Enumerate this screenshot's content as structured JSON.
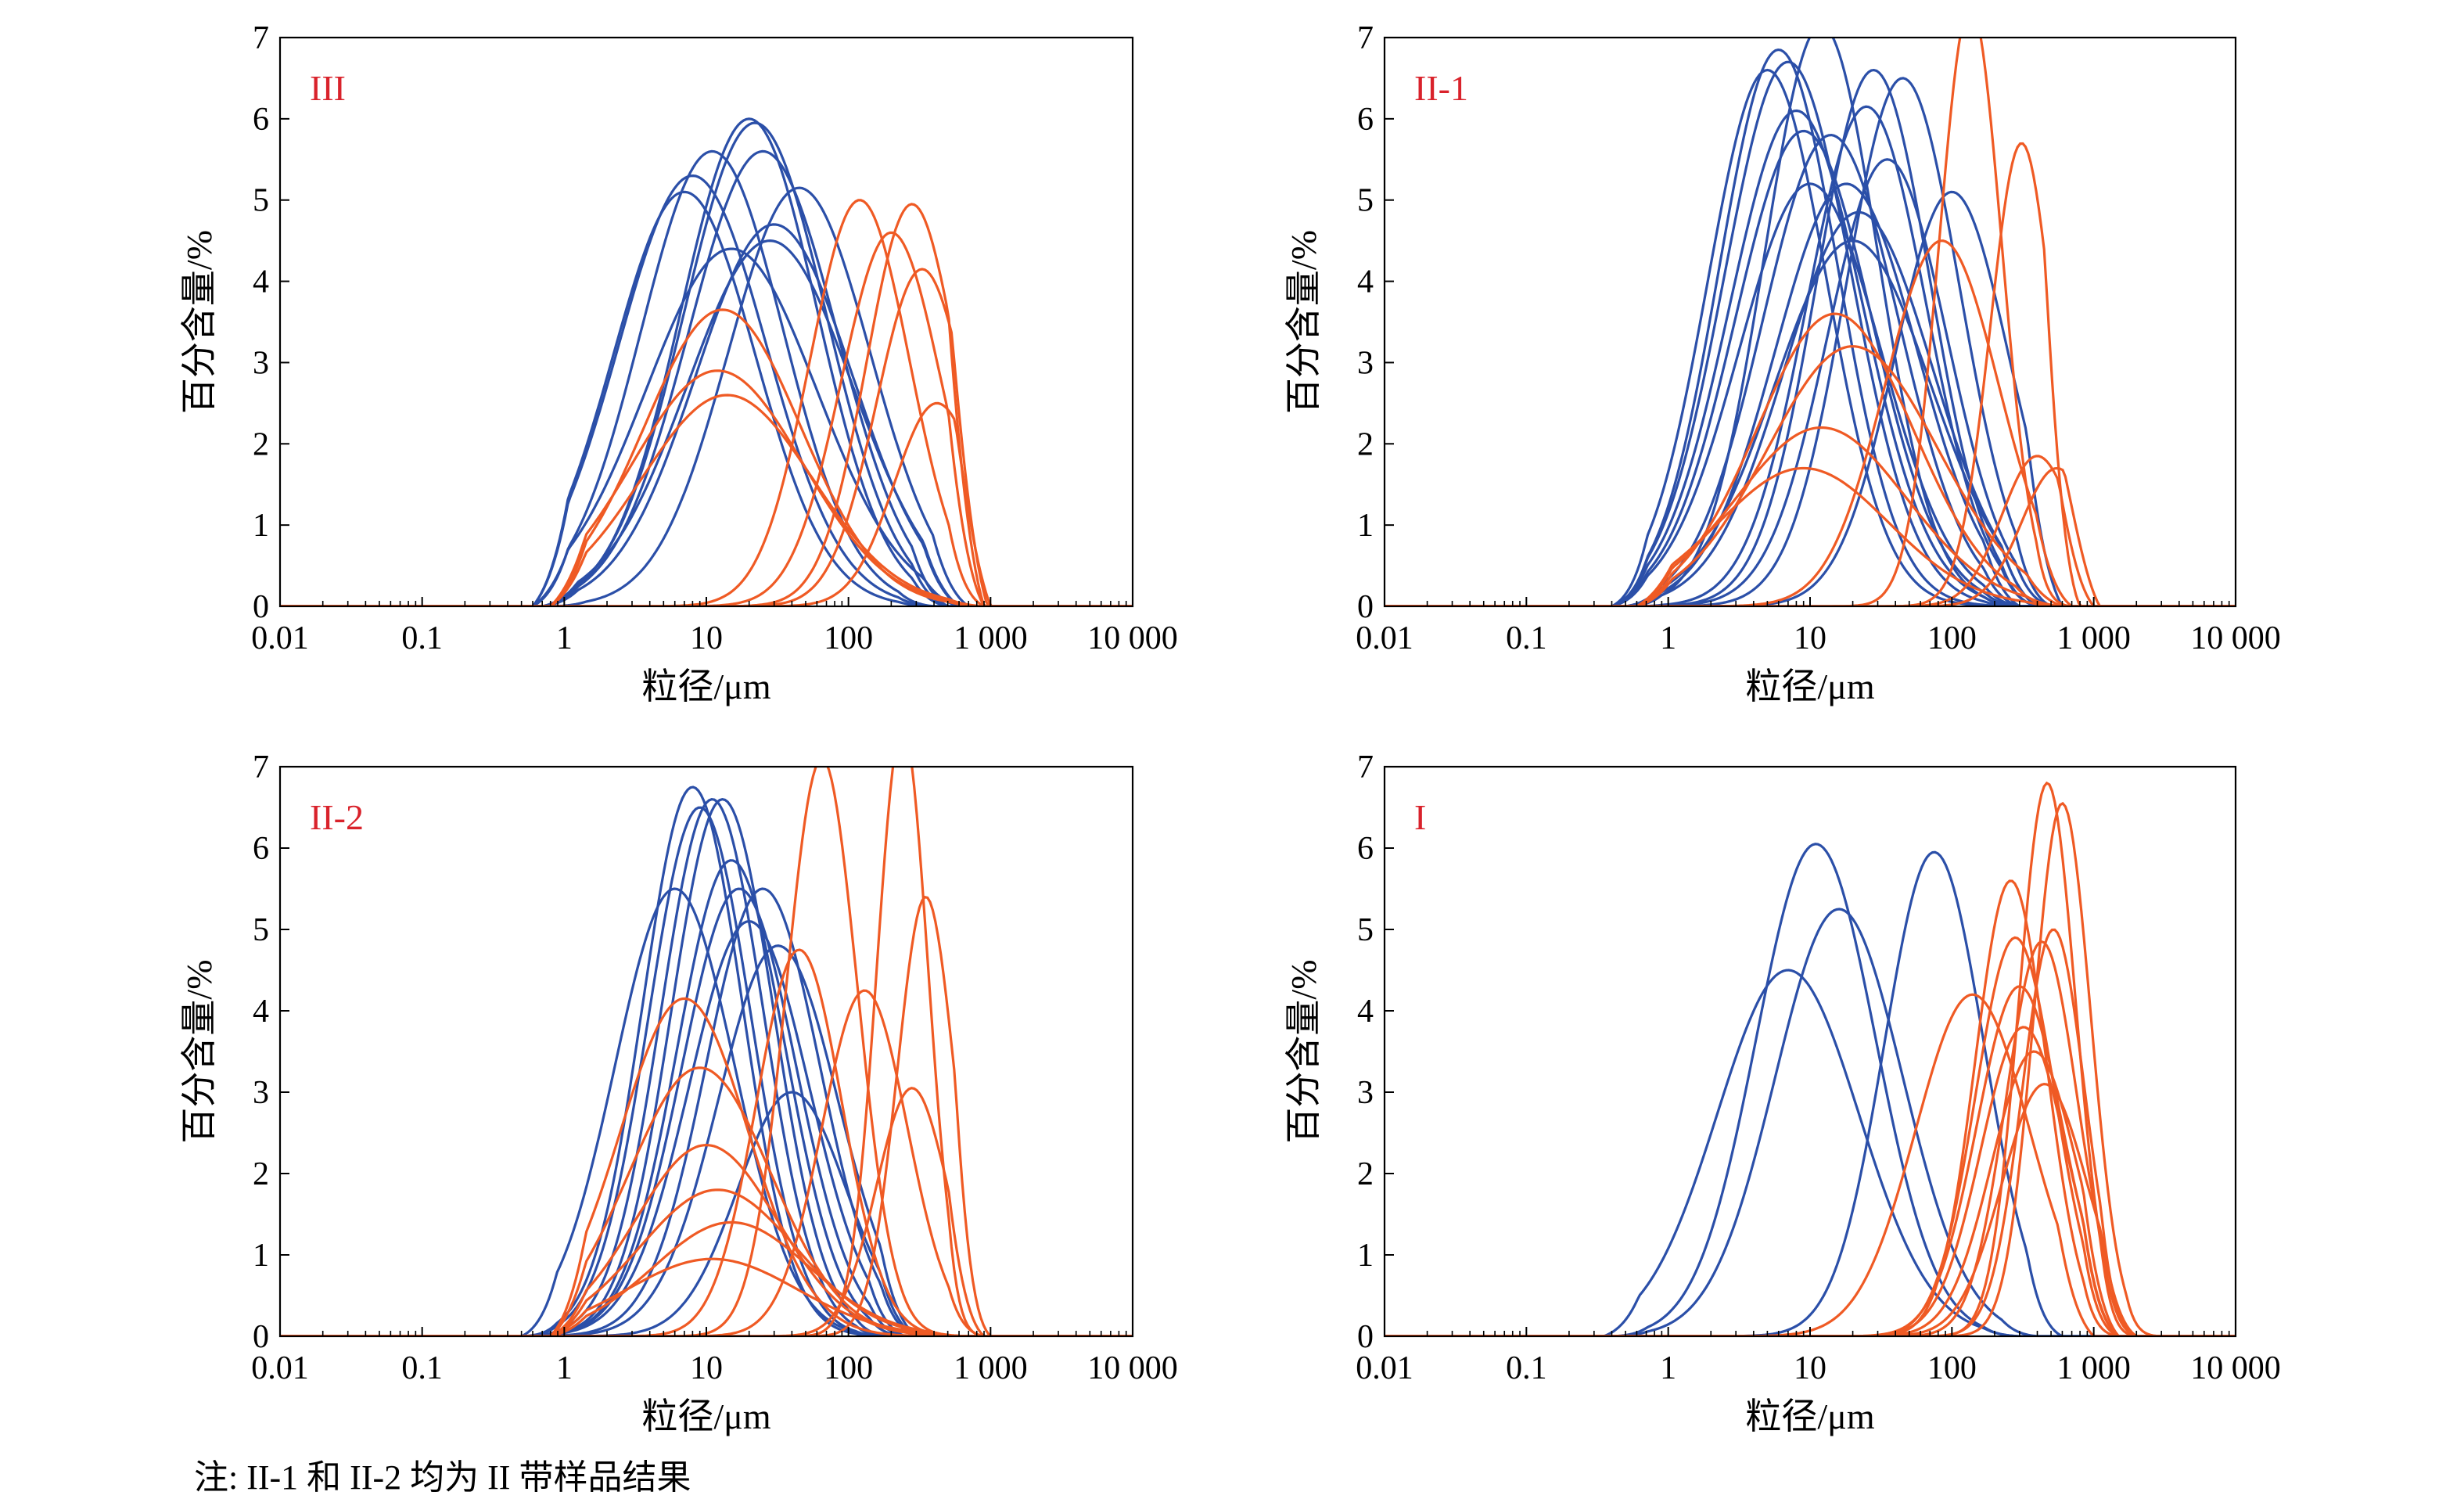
{
  "note": "注: II-1 和 II-2 均为 II 带样品结果",
  "colors": {
    "blue": "#2b4fa8",
    "orange": "#ef5a24",
    "panel_label": "#d9222b"
  },
  "chart_data": [
    {
      "type": "line",
      "panel_label": "III",
      "xlabel": "粒径/μm",
      "ylabel": "百分含量/%",
      "xscale": "log",
      "xlim": [
        0.01,
        10000
      ],
      "ylim": [
        0,
        7
      ],
      "x_ticks": [
        "0.01",
        "0.1",
        "1",
        "10",
        "100",
        "1 000",
        "10 000"
      ],
      "y_ticks": [
        "0",
        "1",
        "2",
        "3",
        "4",
        "5",
        "6",
        "7"
      ],
      "series": [
        {
          "color": "blue",
          "peak_x": 7,
          "peak_y": 5.1,
          "width": 0.5,
          "lo": 0.6,
          "hi": 400
        },
        {
          "color": "blue",
          "peak_x": 8,
          "peak_y": 5.3,
          "width": 0.52,
          "lo": 0.6,
          "hi": 400
        },
        {
          "color": "blue",
          "peak_x": 11,
          "peak_y": 5.6,
          "width": 0.5,
          "lo": 0.6,
          "hi": 400
        },
        {
          "color": "blue",
          "peak_x": 20,
          "peak_y": 6.0,
          "width": 0.48,
          "lo": 0.7,
          "hi": 500
        },
        {
          "color": "blue",
          "peak_x": 22,
          "peak_y": 5.95,
          "width": 0.5,
          "lo": 0.7,
          "hi": 500
        },
        {
          "color": "blue",
          "peak_x": 25,
          "peak_y": 5.6,
          "width": 0.52,
          "lo": 0.7,
          "hi": 500
        },
        {
          "color": "blue",
          "peak_x": 30,
          "peak_y": 4.7,
          "width": 0.55,
          "lo": 0.7,
          "hi": 600
        },
        {
          "color": "blue",
          "peak_x": 28,
          "peak_y": 4.5,
          "width": 0.58,
          "lo": 0.7,
          "hi": 600
        },
        {
          "color": "blue",
          "peak_x": 45,
          "peak_y": 5.15,
          "width": 0.5,
          "lo": 0.8,
          "hi": 700
        },
        {
          "color": "blue",
          "peak_x": 15,
          "peak_y": 4.4,
          "width": 0.6,
          "lo": 0.6,
          "hi": 600
        },
        {
          "color": "orange",
          "peak_x": 13,
          "peak_y": 3.65,
          "width": 0.55,
          "lo": 0.8,
          "hi": 900
        },
        {
          "color": "orange",
          "peak_x": 12,
          "peak_y": 2.9,
          "width": 0.6,
          "lo": 0.8,
          "hi": 900
        },
        {
          "color": "orange",
          "peak_x": 14,
          "peak_y": 2.6,
          "width": 0.6,
          "lo": 0.8,
          "hi": 900
        },
        {
          "color": "orange",
          "peak_x": 120,
          "peak_y": 5.0,
          "width": 0.35,
          "lo": 1,
          "hi": 900
        },
        {
          "color": "orange",
          "peak_x": 200,
          "peak_y": 4.6,
          "width": 0.35,
          "lo": 1,
          "hi": 900
        },
        {
          "color": "orange",
          "peak_x": 280,
          "peak_y": 4.95,
          "width": 0.32,
          "lo": 1,
          "hi": 900
        },
        {
          "color": "orange",
          "peak_x": 330,
          "peak_y": 4.15,
          "width": 0.32,
          "lo": 1,
          "hi": 950
        },
        {
          "color": "orange",
          "peak_x": 420,
          "peak_y": 2.5,
          "width": 0.3,
          "lo": 1,
          "hi": 1000
        }
      ]
    },
    {
      "type": "line",
      "panel_label": "II-1",
      "xlabel": "粒径/μm",
      "ylabel": "百分含量/%",
      "xscale": "log",
      "xlim": [
        0.01,
        10000
      ],
      "ylim": [
        0,
        7
      ],
      "x_ticks": [
        "0.01",
        "0.1",
        "1",
        "10",
        "100",
        "1 000",
        "10 000"
      ],
      "y_ticks": [
        "0",
        "1",
        "2",
        "3",
        "4",
        "5",
        "6",
        "7"
      ],
      "series": [
        {
          "color": "blue",
          "peak_x": 5,
          "peak_y": 6.6,
          "width": 0.42,
          "lo": 0.4,
          "hi": 300
        },
        {
          "color": "blue",
          "peak_x": 6,
          "peak_y": 6.85,
          "width": 0.42,
          "lo": 0.4,
          "hi": 300
        },
        {
          "color": "blue",
          "peak_x": 7,
          "peak_y": 6.7,
          "width": 0.45,
          "lo": 0.4,
          "hi": 300
        },
        {
          "color": "blue",
          "peak_x": 8,
          "peak_y": 6.1,
          "width": 0.47,
          "lo": 0.4,
          "hi": 300
        },
        {
          "color": "blue",
          "peak_x": 9,
          "peak_y": 5.85,
          "width": 0.48,
          "lo": 0.4,
          "hi": 300
        },
        {
          "color": "blue",
          "peak_x": 12,
          "peak_y": 7.15,
          "width": 0.4,
          "lo": 0.5,
          "hi": 300
        },
        {
          "color": "blue",
          "peak_x": 14,
          "peak_y": 5.8,
          "width": 0.48,
          "lo": 0.5,
          "hi": 300
        },
        {
          "color": "blue",
          "peak_x": 18,
          "peak_y": 5.2,
          "width": 0.5,
          "lo": 0.5,
          "hi": 300
        },
        {
          "color": "blue",
          "peak_x": 22,
          "peak_y": 4.85,
          "width": 0.52,
          "lo": 0.5,
          "hi": 400
        },
        {
          "color": "blue",
          "peak_x": 25,
          "peak_y": 6.15,
          "width": 0.42,
          "lo": 0.5,
          "hi": 400
        },
        {
          "color": "blue",
          "peak_x": 28,
          "peak_y": 6.6,
          "width": 0.4,
          "lo": 0.5,
          "hi": 400
        },
        {
          "color": "blue",
          "peak_x": 35,
          "peak_y": 5.5,
          "width": 0.42,
          "lo": 0.6,
          "hi": 500
        },
        {
          "color": "blue",
          "peak_x": 45,
          "peak_y": 6.5,
          "width": 0.4,
          "lo": 0.6,
          "hi": 500
        },
        {
          "color": "blue",
          "peak_x": 100,
          "peak_y": 5.1,
          "width": 0.4,
          "lo": 0.8,
          "hi": 600
        },
        {
          "color": "blue",
          "peak_x": 20,
          "peak_y": 4.5,
          "width": 0.55,
          "lo": 0.5,
          "hi": 400
        },
        {
          "color": "blue",
          "peak_x": 10,
          "peak_y": 5.2,
          "width": 0.5,
          "lo": 0.4,
          "hi": 300
        },
        {
          "color": "orange",
          "peak_x": 15,
          "peak_y": 3.6,
          "width": 0.55,
          "lo": 0.6,
          "hi": 500
        },
        {
          "color": "orange",
          "peak_x": 20,
          "peak_y": 3.2,
          "width": 0.6,
          "lo": 0.6,
          "hi": 600
        },
        {
          "color": "orange",
          "peak_x": 12,
          "peak_y": 2.2,
          "width": 0.6,
          "lo": 0.6,
          "hi": 600
        },
        {
          "color": "orange",
          "peak_x": 9,
          "peak_y": 1.7,
          "width": 0.6,
          "lo": 0.6,
          "hi": 600
        },
        {
          "color": "orange",
          "peak_x": 85,
          "peak_y": 4.5,
          "width": 0.4,
          "lo": 1,
          "hi": 700
        },
        {
          "color": "orange",
          "peak_x": 135,
          "peak_y": 7.4,
          "width": 0.22,
          "lo": 1,
          "hi": 700
        },
        {
          "color": "orange",
          "peak_x": 310,
          "peak_y": 5.7,
          "width": 0.22,
          "lo": 1,
          "hi": 800
        },
        {
          "color": "orange",
          "peak_x": 400,
          "peak_y": 1.85,
          "width": 0.25,
          "lo": 1,
          "hi": 1000
        },
        {
          "color": "orange",
          "peak_x": 550,
          "peak_y": 1.7,
          "width": 0.25,
          "lo": 1,
          "hi": 1100
        }
      ]
    },
    {
      "type": "line",
      "panel_label": "II-2",
      "xlabel": "粒径/μm",
      "ylabel": "百分含量/%",
      "xscale": "log",
      "xlim": [
        0.01,
        10000
      ],
      "ylim": [
        0,
        7
      ],
      "x_ticks": [
        "0.01",
        "0.1",
        "1",
        "10",
        "100",
        "1 000",
        "10 000"
      ],
      "y_ticks": [
        "0",
        "1",
        "2",
        "3",
        "4",
        "5",
        "6",
        "7"
      ],
      "series": [
        {
          "color": "blue",
          "peak_x": 6,
          "peak_y": 5.5,
          "width": 0.42,
          "lo": 0.5,
          "hi": 200
        },
        {
          "color": "blue",
          "peak_x": 8,
          "peak_y": 6.75,
          "width": 0.35,
          "lo": 0.5,
          "hi": 200
        },
        {
          "color": "blue",
          "peak_x": 9,
          "peak_y": 6.5,
          "width": 0.36,
          "lo": 0.5,
          "hi": 200
        },
        {
          "color": "blue",
          "peak_x": 11,
          "peak_y": 6.6,
          "width": 0.36,
          "lo": 0.5,
          "hi": 200
        },
        {
          "color": "blue",
          "peak_x": 13,
          "peak_y": 6.6,
          "width": 0.36,
          "lo": 0.5,
          "hi": 200
        },
        {
          "color": "blue",
          "peak_x": 15,
          "peak_y": 5.85,
          "width": 0.38,
          "lo": 0.5,
          "hi": 250
        },
        {
          "color": "blue",
          "peak_x": 17,
          "peak_y": 5.5,
          "width": 0.4,
          "lo": 0.5,
          "hi": 250
        },
        {
          "color": "blue",
          "peak_x": 20,
          "peak_y": 5.1,
          "width": 0.42,
          "lo": 0.5,
          "hi": 250
        },
        {
          "color": "blue",
          "peak_x": 25,
          "peak_y": 5.5,
          "width": 0.4,
          "lo": 0.5,
          "hi": 300
        },
        {
          "color": "blue",
          "peak_x": 32,
          "peak_y": 4.8,
          "width": 0.42,
          "lo": 0.5,
          "hi": 300
        },
        {
          "color": "blue",
          "peak_x": 40,
          "peak_y": 3.0,
          "width": 0.38,
          "lo": 0.6,
          "hi": 300
        },
        {
          "color": "orange",
          "peak_x": 7,
          "peak_y": 4.15,
          "width": 0.45,
          "lo": 0.8,
          "hi": 700
        },
        {
          "color": "orange",
          "peak_x": 9,
          "peak_y": 3.3,
          "width": 0.5,
          "lo": 0.8,
          "hi": 700
        },
        {
          "color": "orange",
          "peak_x": 10,
          "peak_y": 2.35,
          "width": 0.5,
          "lo": 0.8,
          "hi": 700
        },
        {
          "color": "orange",
          "peak_x": 12,
          "peak_y": 1.8,
          "width": 0.55,
          "lo": 0.8,
          "hi": 700
        },
        {
          "color": "orange",
          "peak_x": 15,
          "peak_y": 1.4,
          "width": 0.55,
          "lo": 0.8,
          "hi": 700
        },
        {
          "color": "orange",
          "peak_x": 11,
          "peak_y": 0.95,
          "width": 0.6,
          "lo": 0.8,
          "hi": 700
        },
        {
          "color": "orange",
          "peak_x": 45,
          "peak_y": 4.75,
          "width": 0.3,
          "lo": 1,
          "hi": 800
        },
        {
          "color": "orange",
          "peak_x": 65,
          "peak_y": 7.1,
          "width": 0.25,
          "lo": 1,
          "hi": 800
        },
        {
          "color": "orange",
          "peak_x": 130,
          "peak_y": 4.25,
          "width": 0.3,
          "lo": 1,
          "hi": 900
        },
        {
          "color": "orange",
          "peak_x": 240,
          "peak_y": 7.5,
          "width": 0.18,
          "lo": 1,
          "hi": 900
        },
        {
          "color": "orange",
          "peak_x": 280,
          "peak_y": 3.05,
          "width": 0.25,
          "lo": 1,
          "hi": 900
        },
        {
          "color": "orange",
          "peak_x": 350,
          "peak_y": 5.4,
          "width": 0.2,
          "lo": 1,
          "hi": 1000
        }
      ]
    },
    {
      "type": "line",
      "panel_label": "I",
      "xlabel": "粒径/μm",
      "ylabel": "百分含量/%",
      "xscale": "log",
      "xlim": [
        0.01,
        10000
      ],
      "ylim": [
        0,
        7
      ],
      "x_ticks": [
        "0.01",
        "0.1",
        "1",
        "10",
        "100",
        "1 000",
        "10 000"
      ],
      "y_ticks": [
        "0",
        "1",
        "2",
        "3",
        "4",
        "5",
        "6",
        "7"
      ],
      "series": [
        {
          "color": "blue",
          "peak_x": 7,
          "peak_y": 4.5,
          "width": 0.5,
          "lo": 0.35,
          "hi": 300
        },
        {
          "color": "blue",
          "peak_x": 11,
          "peak_y": 6.05,
          "width": 0.42,
          "lo": 0.4,
          "hi": 300
        },
        {
          "color": "blue",
          "peak_x": 16,
          "peak_y": 5.25,
          "width": 0.45,
          "lo": 0.4,
          "hi": 400
        },
        {
          "color": "blue",
          "peak_x": 75,
          "peak_y": 5.95,
          "width": 0.35,
          "lo": 1,
          "hi": 600
        },
        {
          "color": "orange",
          "peak_x": 140,
          "peak_y": 4.2,
          "width": 0.4,
          "lo": 0.8,
          "hi": 1000
        },
        {
          "color": "orange",
          "peak_x": 260,
          "peak_y": 5.6,
          "width": 0.25,
          "lo": 0.8,
          "hi": 1500
        },
        {
          "color": "orange",
          "peak_x": 280,
          "peak_y": 4.9,
          "width": 0.28,
          "lo": 0.8,
          "hi": 1500
        },
        {
          "color": "orange",
          "peak_x": 300,
          "peak_y": 4.3,
          "width": 0.3,
          "lo": 0.8,
          "hi": 1500
        },
        {
          "color": "orange",
          "peak_x": 320,
          "peak_y": 3.8,
          "width": 0.3,
          "lo": 0.8,
          "hi": 1500
        },
        {
          "color": "orange",
          "peak_x": 380,
          "peak_y": 3.5,
          "width": 0.3,
          "lo": 0.8,
          "hi": 1500
        },
        {
          "color": "orange",
          "peak_x": 430,
          "peak_y": 4.85,
          "width": 0.25,
          "lo": 0.8,
          "hi": 2000
        },
        {
          "color": "orange",
          "peak_x": 470,
          "peak_y": 6.8,
          "width": 0.2,
          "lo": 0.8,
          "hi": 2000
        },
        {
          "color": "orange",
          "peak_x": 520,
          "peak_y": 5.0,
          "width": 0.22,
          "lo": 0.8,
          "hi": 2000
        },
        {
          "color": "orange",
          "peak_x": 600,
          "peak_y": 6.55,
          "width": 0.2,
          "lo": 0.8,
          "hi": 3000
        },
        {
          "color": "orange",
          "peak_x": 450,
          "peak_y": 3.1,
          "width": 0.3,
          "lo": 0.8,
          "hi": 2000
        }
      ]
    }
  ]
}
